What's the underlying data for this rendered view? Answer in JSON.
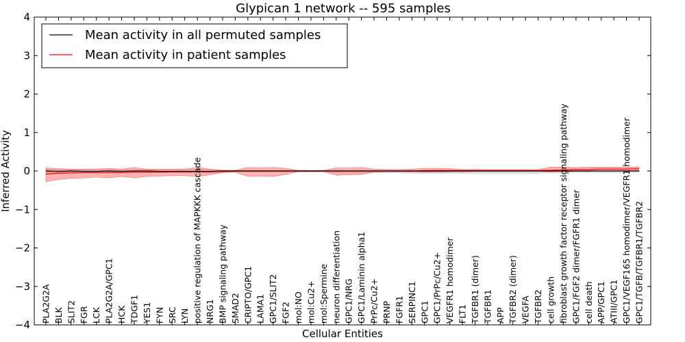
{
  "chart_data": {
    "type": "line",
    "title": "Glypican 1 network -- 595 samples",
    "xlabel": "Cellular Entities",
    "ylabel": "Inferred Activity",
    "ylim": [
      -4,
      4
    ],
    "yticks": [
      4,
      3,
      2,
      1,
      0,
      -1,
      -2,
      -3,
      -4
    ],
    "ytick_labels": [
      "4",
      "3",
      "2",
      "1",
      "0",
      "−1",
      "−2",
      "−3",
      "−4"
    ],
    "legend_position": "top-left",
    "categories": [
      "PLA2G2A",
      "BLK",
      "SLIT2",
      "FGR",
      "LCK",
      "PLA2G2A/GPC1",
      "HCK",
      "TDGF1",
      "YES1",
      "FYN",
      "SRC",
      "LYN",
      "positive regulation of MAPKKK cascade",
      "NRG1",
      "BMP signaling pathway",
      "SMAD2",
      "CRIPTO/GPC1",
      "LAMA1",
      "GPC1/SLIT2",
      "FGF2",
      "mol:NO",
      "mol:Cu2+",
      "mol:Spermine",
      "neuron differentiation",
      "GPC1/NRG",
      "GPC1/Laminin alpha1",
      "PrPc/Cu2+",
      "PRNP",
      "FGFR1",
      "SERPINC1",
      "GPC1",
      "GPC1/PrPc/Cu2+",
      "VEGFR1 homodimer",
      "FLT1",
      "TGFBR1 (dimer)",
      "TGFBR1",
      "APP",
      "TGFBR2 (dimer)",
      "VEGFA",
      "TGFBR2",
      "cell growth",
      "fibroblast growth factor receptor signaling pathway",
      "GPC1/FGF2 dimer/FGFR1 dimer",
      "cell death",
      "APP/GPC1",
      "ATIII/GPC1",
      "GPC1/VEGF165 homodimer/VEGFR1 homodimer",
      "GPC1/TGFB/TGFBR1/TGFBR2"
    ],
    "series": [
      {
        "name": "Mean activity in all permuted samples",
        "color": "#000000",
        "values": [
          0.0,
          -0.01,
          0.0,
          -0.01,
          -0.01,
          0.0,
          -0.01,
          0.0,
          0.0,
          -0.01,
          -0.01,
          -0.01,
          -0.01,
          -0.01,
          0.0,
          0.0,
          0.0,
          0.0,
          0.0,
          0.0,
          0.0,
          0.0,
          0.0,
          0.0,
          0.0,
          0.0,
          0.0,
          0.0,
          0.0,
          0.0,
          0.0,
          0.0,
          0.0,
          0.0,
          0.0,
          0.0,
          0.0,
          0.0,
          0.0,
          0.0,
          0.0,
          0.0,
          0.0,
          0.0,
          0.0,
          0.0,
          0.0,
          0.0
        ],
        "band_upper": [
          0.05,
          0.04,
          0.03,
          0.03,
          0.03,
          0.03,
          0.03,
          0.03,
          0.03,
          0.03,
          0.03,
          0.03,
          0.03,
          0.03,
          0.02,
          0.02,
          0.02,
          0.02,
          0.02,
          0.02,
          0.02,
          0.02,
          0.02,
          0.02,
          0.02,
          0.02,
          0.02,
          0.02,
          0.02,
          0.02,
          0.02,
          0.02,
          0.02,
          0.02,
          0.02,
          0.02,
          0.02,
          0.02,
          0.02,
          0.02,
          0.02,
          0.02,
          0.02,
          0.02,
          0.02,
          0.02,
          0.02,
          0.02
        ],
        "band_lower": [
          -0.05,
          -0.05,
          -0.04,
          -0.04,
          -0.04,
          -0.04,
          -0.04,
          -0.04,
          -0.04,
          -0.04,
          -0.04,
          -0.04,
          -0.04,
          -0.04,
          -0.04,
          -0.03,
          -0.03,
          -0.03,
          -0.03,
          -0.03,
          -0.02,
          -0.02,
          -0.02,
          -0.04,
          -0.04,
          -0.04,
          -0.04,
          -0.05,
          -0.05,
          -0.06,
          -0.06,
          -0.06,
          -0.06,
          -0.06,
          -0.07,
          -0.07,
          -0.07,
          -0.07,
          -0.07,
          -0.06,
          -0.05,
          -0.04,
          -0.04,
          -0.04,
          -0.04,
          -0.04,
          -0.04,
          -0.03
        ]
      },
      {
        "name": "Mean activity in patient samples",
        "color": "#ff0000",
        "values": [
          -0.08,
          -0.06,
          -0.05,
          -0.04,
          -0.04,
          -0.04,
          -0.04,
          -0.03,
          -0.03,
          -0.03,
          -0.02,
          -0.02,
          -0.02,
          -0.02,
          -0.01,
          0.0,
          0.0,
          0.0,
          0.0,
          0.0,
          0.0,
          0.0,
          0.0,
          0.0,
          0.0,
          0.0,
          0.0,
          0.0,
          0.0,
          0.0,
          0.01,
          0.01,
          0.01,
          0.01,
          0.01,
          0.01,
          0.01,
          0.01,
          0.01,
          0.01,
          0.02,
          0.03,
          0.04,
          0.04,
          0.05,
          0.05,
          0.05,
          0.06
        ],
        "band_upper": [
          0.08,
          0.06,
          0.05,
          0.05,
          0.05,
          0.07,
          0.05,
          0.09,
          0.05,
          0.05,
          0.05,
          0.05,
          0.09,
          0.05,
          0.02,
          0.02,
          0.09,
          0.08,
          0.09,
          0.07,
          0.02,
          0.01,
          0.02,
          0.08,
          0.08,
          0.09,
          0.05,
          0.04,
          0.04,
          0.05,
          0.07,
          0.07,
          0.06,
          0.04,
          0.04,
          0.04,
          0.04,
          0.04,
          0.04,
          0.04,
          0.1,
          0.1,
          0.09,
          0.1,
          0.1,
          0.1,
          0.1,
          0.11
        ],
        "band_lower": [
          -0.28,
          -0.22,
          -0.19,
          -0.18,
          -0.16,
          -0.18,
          -0.14,
          -0.18,
          -0.14,
          -0.13,
          -0.12,
          -0.12,
          -0.14,
          -0.1,
          -0.04,
          -0.03,
          -0.14,
          -0.13,
          -0.14,
          -0.09,
          -0.02,
          -0.02,
          -0.02,
          -0.11,
          -0.1,
          -0.09,
          -0.03,
          -0.02,
          -0.02,
          -0.02,
          -0.03,
          -0.03,
          -0.02,
          -0.02,
          -0.01,
          -0.01,
          -0.01,
          -0.01,
          -0.01,
          -0.01,
          -0.02,
          -0.02,
          -0.01,
          -0.01,
          0.0,
          0.0,
          0.0,
          0.0
        ]
      }
    ]
  }
}
